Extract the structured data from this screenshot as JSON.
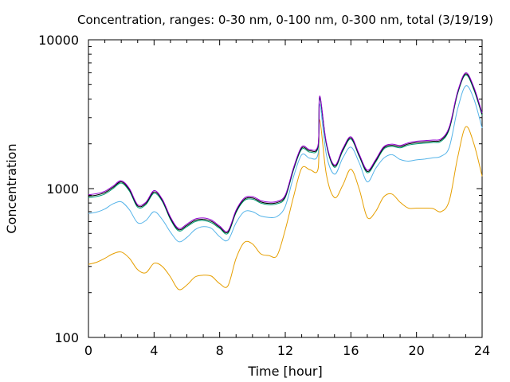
{
  "chart_data": {
    "type": "line",
    "title": "Concentration, ranges: 0-30 nm, 0-100 nm, 0-300 nm, total (3/19/19)",
    "xlabel": "Time [hour]",
    "ylabel": "Concentration",
    "xlim": [
      0,
      24
    ],
    "ylim": [
      100,
      10000
    ],
    "yscale": "log",
    "grid": false,
    "legend": "none",
    "x_ticks": [
      "0",
      "4",
      "8",
      "12",
      "16",
      "20",
      "24"
    ],
    "x_tick_values": [
      0,
      4,
      8,
      12,
      16,
      20,
      24
    ],
    "y_ticks": [
      "100",
      "1000",
      "10000"
    ],
    "y_tick_values": [
      100,
      1000,
      10000
    ],
    "series": [
      {
        "color": "#e69f00",
        "x": [
          0,
          0.5,
          1,
          1.5,
          2,
          2.5,
          3,
          3.5,
          4,
          4.5,
          5,
          5.5,
          6,
          6.5,
          7,
          7.5,
          8,
          8.5,
          9,
          9.5,
          10,
          10.5,
          11,
          11.5,
          12,
          12.5,
          13,
          13.5,
          14,
          14.1,
          14.5,
          15,
          15.5,
          16,
          16.5,
          17,
          17.5,
          18,
          18.5,
          19,
          19.5,
          20,
          20.5,
          21,
          21.5,
          22,
          22.5,
          23,
          23.5,
          24
        ],
        "y": [
          310,
          320,
          340,
          365,
          375,
          340,
          285,
          272,
          315,
          300,
          255,
          210,
          225,
          255,
          262,
          258,
          230,
          222,
          340,
          435,
          425,
          365,
          355,
          355,
          530,
          880,
          1370,
          1340,
          1360,
          2900,
          1250,
          870,
          1050,
          1350,
          1000,
          640,
          700,
          880,
          920,
          810,
          740,
          740,
          740,
          735,
          700,
          830,
          1600,
          2600,
          2000,
          1210
        ]
      },
      {
        "color": "#56b4e9",
        "x": [
          0,
          0.5,
          1,
          1.5,
          2,
          2.5,
          3,
          3.5,
          4,
          4.5,
          5,
          5.5,
          6,
          6.5,
          7,
          7.5,
          8,
          8.5,
          9,
          9.5,
          10,
          10.5,
          11,
          11.5,
          12,
          12.5,
          13,
          13.5,
          14,
          14.1,
          14.5,
          15,
          15.5,
          16,
          16.5,
          17,
          17.5,
          18,
          18.5,
          19,
          19.5,
          20,
          20.5,
          21,
          21.5,
          22,
          22.5,
          23,
          23.5,
          24
        ],
        "y": [
          680,
          695,
          730,
          790,
          815,
          720,
          590,
          610,
          700,
          620,
          510,
          440,
          470,
          530,
          555,
          540,
          475,
          450,
          590,
          700,
          700,
          655,
          640,
          650,
          760,
          1200,
          1690,
          1600,
          1720,
          3700,
          1700,
          1250,
          1600,
          1900,
          1500,
          1110,
          1360,
          1600,
          1690,
          1570,
          1530,
          1560,
          1580,
          1610,
          1650,
          1900,
          3400,
          4900,
          4000,
          2550
        ]
      },
      {
        "color": "#009e73",
        "x": [
          0,
          0.5,
          1,
          1.5,
          2,
          2.5,
          3,
          3.5,
          4,
          4.5,
          5,
          5.5,
          6,
          6.5,
          7,
          7.5,
          8,
          8.5,
          9,
          9.5,
          10,
          10.5,
          11,
          11.5,
          12,
          12.5,
          13,
          13.5,
          14,
          14.1,
          14.5,
          15,
          15.5,
          16,
          16.5,
          17,
          17.5,
          18,
          18.5,
          19,
          19.5,
          20,
          20.5,
          21,
          21.5,
          22,
          22.5,
          23,
          23.5,
          24
        ],
        "y": [
          870,
          885,
          920,
          1000,
          1090,
          960,
          750,
          780,
          930,
          820,
          620,
          520,
          555,
          600,
          610,
          590,
          540,
          500,
          690,
          830,
          850,
          800,
          780,
          790,
          870,
          1330,
          1840,
          1760,
          1900,
          4050,
          1980,
          1390,
          1780,
          2150,
          1650,
          1280,
          1500,
          1840,
          1920,
          1880,
          1960,
          2000,
          2020,
          2040,
          2080,
          2500,
          4300,
          5800,
          4600,
          3100
        ]
      },
      {
        "color": "#000000",
        "x": [
          0,
          0.5,
          1,
          1.5,
          2,
          2.5,
          3,
          3.5,
          4,
          4.5,
          5,
          5.5,
          6,
          6.5,
          7,
          7.5,
          8,
          8.5,
          9,
          9.5,
          10,
          10.5,
          11,
          11.5,
          12,
          12.5,
          13,
          13.5,
          14,
          14.1,
          14.5,
          15,
          15.5,
          16,
          16.5,
          17,
          17.5,
          18,
          18.5,
          19,
          19.5,
          20,
          20.5,
          21,
          21.5,
          22,
          22.5,
          23,
          23.5,
          24
        ],
        "y": [
          890,
          905,
          940,
          1020,
          1110,
          980,
          765,
          795,
          950,
          835,
          632,
          530,
          566,
          612,
          622,
          602,
          550,
          510,
          703,
          846,
          866,
          815,
          795,
          805,
          887,
          1355,
          1875,
          1795,
          1935,
          4130,
          2015,
          1415,
          1815,
          2190,
          1680,
          1305,
          1530,
          1875,
          1955,
          1915,
          1995,
          2040,
          2060,
          2080,
          2120,
          2550,
          4380,
          5900,
          4700,
          3160
        ]
      },
      {
        "color": "#9400d3",
        "x": [
          0,
          0.5,
          1,
          1.5,
          2,
          2.5,
          3,
          3.5,
          4,
          4.5,
          5,
          5.5,
          6,
          6.5,
          7,
          7.5,
          8,
          8.5,
          9,
          9.5,
          10,
          10.5,
          11,
          11.5,
          12,
          12.5,
          13,
          13.5,
          14,
          14.1,
          14.5,
          15,
          15.5,
          16,
          16.5,
          17,
          17.5,
          18,
          18.5,
          19,
          19.5,
          20,
          20.5,
          21,
          21.5,
          22,
          22.5,
          23,
          23.5,
          24
        ],
        "y": [
          910,
          925,
          960,
          1040,
          1130,
          1000,
          780,
          810,
          970,
          850,
          645,
          540,
          578,
          625,
          635,
          615,
          560,
          520,
          717,
          863,
          883,
          831,
          811,
          821,
          905,
          1380,
          1910,
          1830,
          1970,
          4200,
          2050,
          1440,
          1850,
          2230,
          1710,
          1330,
          1560,
          1910,
          1990,
          1950,
          2030,
          2080,
          2100,
          2120,
          2160,
          2600,
          4460,
          6000,
          4800,
          3220
        ]
      }
    ]
  }
}
